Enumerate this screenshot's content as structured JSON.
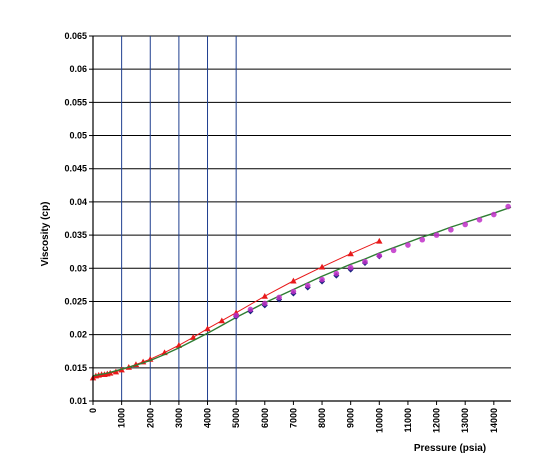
{
  "chart_data": {
    "type": "scatter",
    "title": "",
    "xlabel": "Pressure (psia)",
    "ylabel": "Viscosity (cp)",
    "xlim": [
      0,
      14600
    ],
    "ylim": [
      0.01,
      0.065
    ],
    "x_ticks": [
      0,
      1000,
      2000,
      3000,
      4000,
      5000,
      6000,
      7000,
      8000,
      9000,
      10000,
      11000,
      12000,
      13000,
      14000
    ],
    "x_tick_labels": [
      "0",
      "1000",
      "2000",
      "3000",
      "4000",
      "5000",
      "6000",
      "7000",
      "8000",
      "9000",
      "10000",
      "11000",
      "12000",
      "13000",
      "14000"
    ],
    "y_ticks": [
      0.01,
      0.015,
      0.02,
      0.025,
      0.03,
      0.035,
      0.04,
      0.045,
      0.05,
      0.055,
      0.06,
      0.065
    ],
    "y_tick_labels": [
      "0.01",
      "0.015",
      "0.02",
      "0.025",
      "0.03",
      "0.035",
      "0.04",
      "0.045",
      "0.05",
      "0.055",
      "0.06",
      "0.065"
    ],
    "horizontal_grid": true,
    "vertical_grid_at": [
      1000,
      2000,
      3000,
      4000,
      5000
    ],
    "colors": {
      "grid": "#000000",
      "vertical_lines": "#1f3f8f",
      "series_red": "#e8191a",
      "series_green": "#2e7d32",
      "series_blue": "#1a237e",
      "series_magenta": "#c030c8"
    },
    "series": [
      {
        "marker": "triangle",
        "color": "#e8191a",
        "x": [
          0,
          100,
          200,
          300,
          400,
          500,
          600,
          800,
          1000,
          1250,
          1500,
          1750,
          2000,
          2500,
          3000,
          3500,
          4000,
          4500,
          5000,
          6000,
          7000,
          8000,
          9000,
          10000
        ],
        "y": [
          0.0135,
          0.0138,
          0.0139,
          0.014,
          0.014,
          0.0141,
          0.0142,
          0.0144,
          0.0147,
          0.0151,
          0.0155,
          0.0159,
          0.0163,
          0.0173,
          0.0184,
          0.0196,
          0.0209,
          0.0221,
          0.0233,
          0.0258,
          0.0281,
          0.0302,
          0.0322,
          0.0341
        ]
      },
      {
        "marker": "line",
        "color": "#2e7d32",
        "x": [
          0,
          500,
          1000,
          1500,
          2000,
          2500,
          3000,
          3500,
          4000,
          4500,
          5000,
          5500,
          6000,
          6500,
          7000,
          7500,
          8000,
          8500,
          9000,
          9500,
          10000,
          10500,
          11000,
          11500,
          12000,
          12500,
          13000,
          13500,
          14000,
          14600
        ],
        "y": [
          0.0138,
          0.0142,
          0.0148,
          0.0154,
          0.0161,
          0.017,
          0.018,
          0.0191,
          0.0202,
          0.0214,
          0.0226,
          0.0237,
          0.0248,
          0.0258,
          0.0268,
          0.0278,
          0.0288,
          0.0297,
          0.0306,
          0.0314,
          0.0323,
          0.0331,
          0.0339,
          0.0347,
          0.0354,
          0.0362,
          0.0369,
          0.0376,
          0.0383,
          0.0392
        ]
      },
      {
        "marker": "diamond",
        "color": "#1a237e",
        "x": [
          5000,
          5500,
          6000,
          6500,
          7000,
          7500,
          8000,
          8500,
          9000,
          9500,
          10000
        ],
        "y": [
          0.0227,
          0.0235,
          0.0244,
          0.0253,
          0.0262,
          0.0271,
          0.028,
          0.0289,
          0.0298,
          0.0308,
          0.0318
        ]
      },
      {
        "marker": "circle",
        "color": "#c030c8",
        "x": [
          5000,
          5500,
          6000,
          6500,
          7000,
          7500,
          8000,
          8500,
          9000,
          9500,
          10000,
          10500,
          11000,
          11500,
          12000,
          12500,
          13000,
          13500,
          14000,
          14500
        ],
        "y": [
          0.0229,
          0.0238,
          0.0247,
          0.0256,
          0.0265,
          0.0274,
          0.0283,
          0.0292,
          0.0301,
          0.031,
          0.0319,
          0.0327,
          0.0335,
          0.0343,
          0.035,
          0.0358,
          0.0366,
          0.0373,
          0.0381,
          0.0393
        ]
      }
    ]
  }
}
